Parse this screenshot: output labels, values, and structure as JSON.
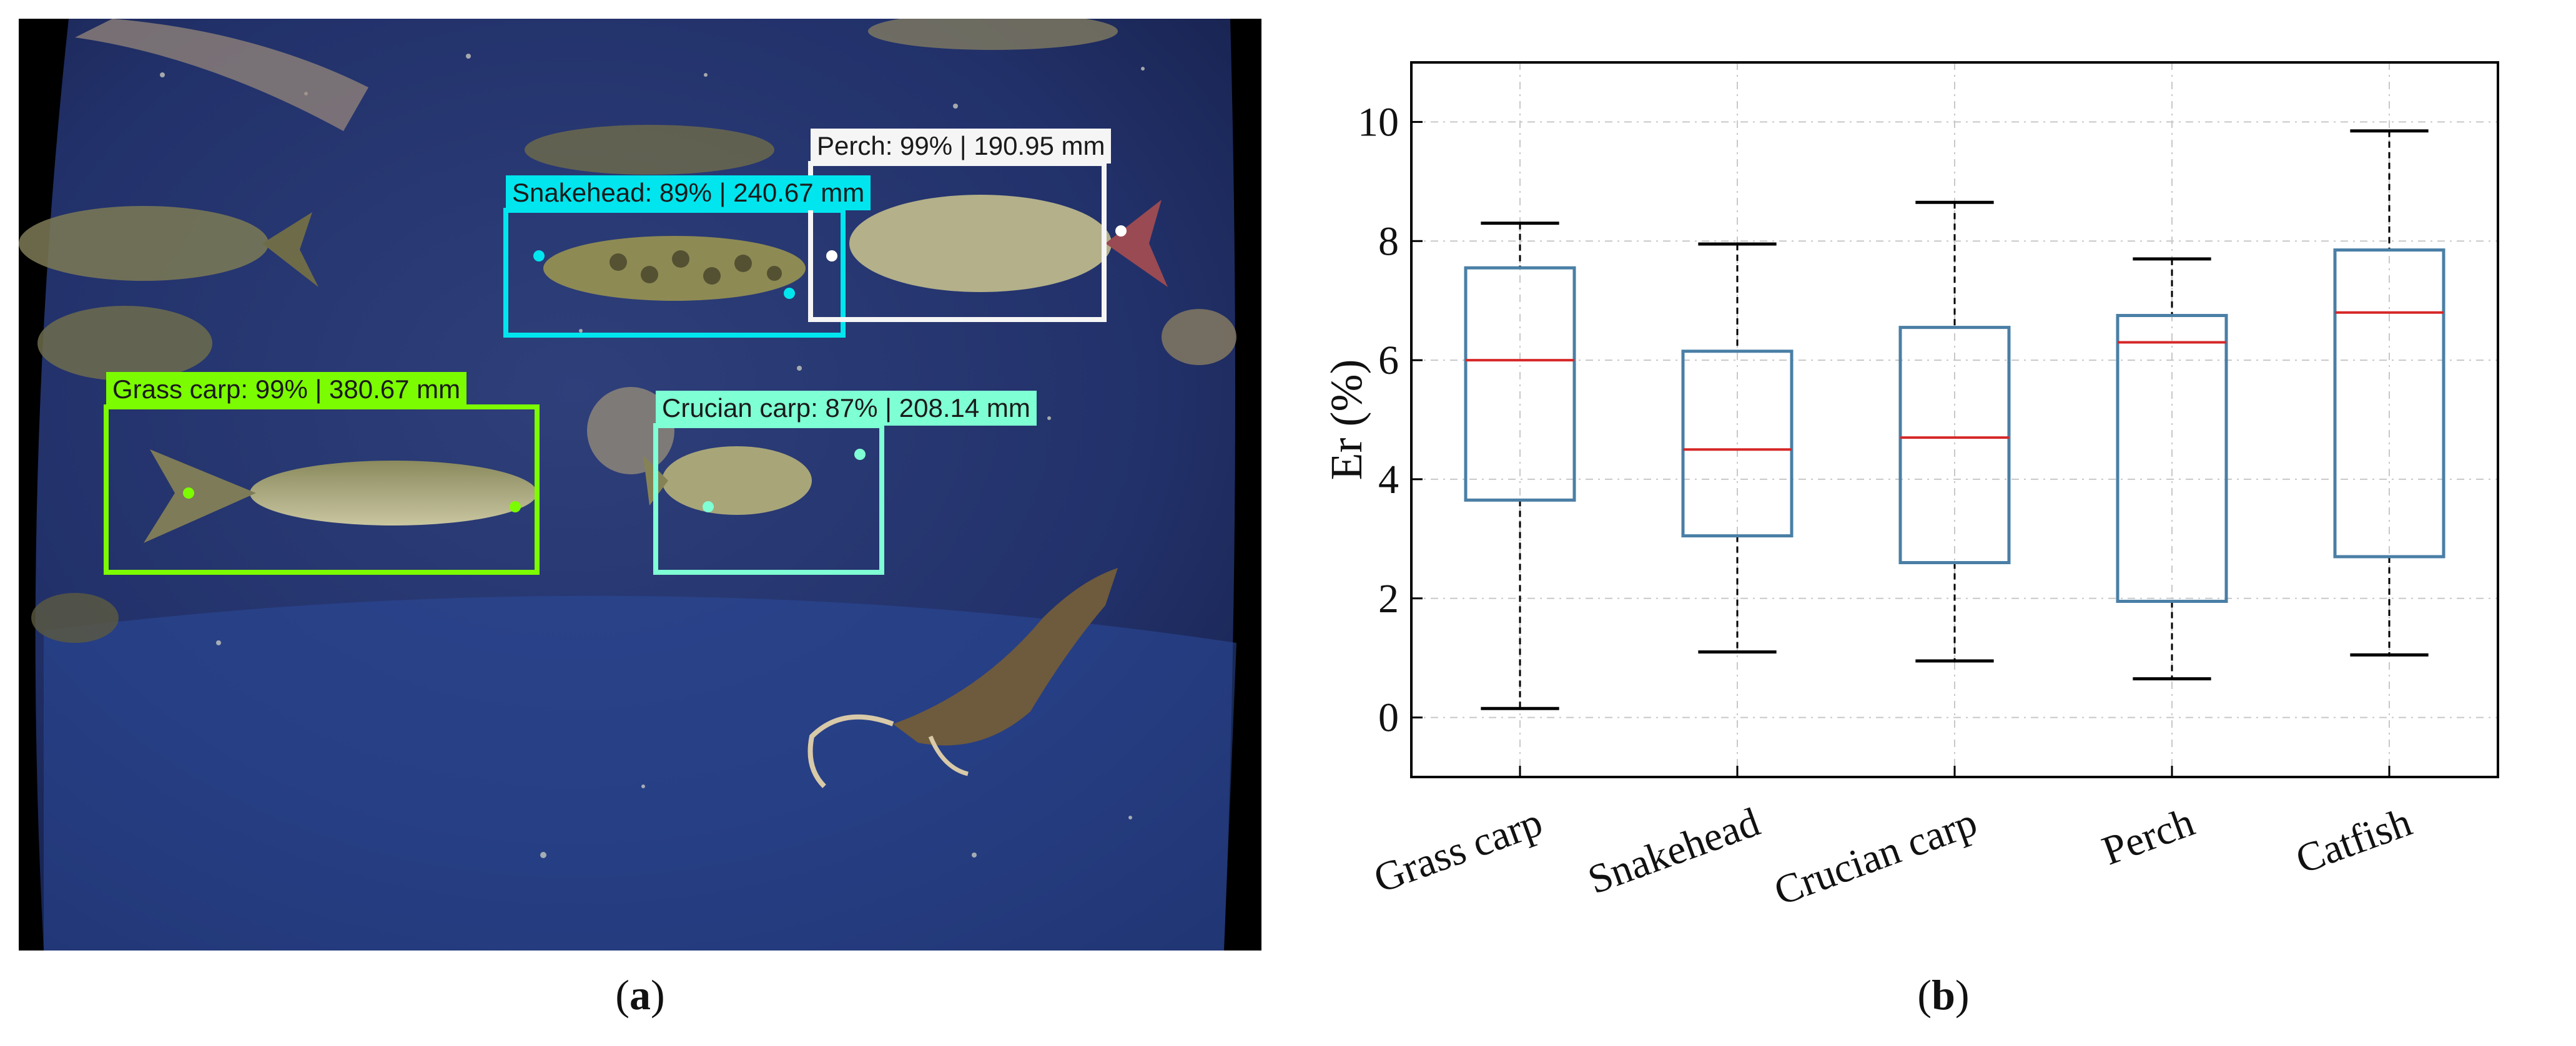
{
  "panel_a": {
    "detections": [
      {
        "label": "Grass carp: 99% | 380.67 mm",
        "color": "#7cfc00"
      },
      {
        "label": "Snakehead: 89% | 240.67 mm",
        "color": "#00e5ee"
      },
      {
        "label": "Perch: 99% | 190.95 mm",
        "color": "#f5f5f5"
      },
      {
        "label": "Crucian carp: 87% | 208.14 mm",
        "color": "#7fffd4"
      }
    ]
  },
  "chart_data": {
    "type": "box",
    "ylabel": "Er (%)",
    "ylim": [
      -1,
      11
    ],
    "yticks": [
      0,
      2,
      4,
      6,
      8,
      10
    ],
    "grid": true,
    "categories": [
      "Grass carp",
      "Snakehead",
      "Crucian carp",
      "Perch",
      "Catfish"
    ],
    "boxes": [
      {
        "name": "Grass carp",
        "min": 0.15,
        "q1": 3.65,
        "median": 6.0,
        "q3": 7.55,
        "max": 8.3
      },
      {
        "name": "Snakehead",
        "min": 1.1,
        "q1": 3.05,
        "median": 4.5,
        "q3": 6.15,
        "max": 7.95
      },
      {
        "name": "Crucian carp",
        "min": 0.95,
        "q1": 2.6,
        "median": 4.7,
        "q3": 6.55,
        "max": 8.65
      },
      {
        "name": "Perch",
        "min": 0.65,
        "q1": 1.95,
        "median": 6.3,
        "q3": 6.75,
        "max": 7.7
      },
      {
        "name": "Catfish",
        "min": 1.05,
        "q1": 2.7,
        "median": 6.8,
        "q3": 7.85,
        "max": 9.85
      }
    ],
    "colors": {
      "box": "#4a7fa6",
      "median": "#d62728",
      "whisker": "#000000",
      "grid": "#c8c8c8"
    }
  },
  "captions": {
    "a": "a",
    "b": "b"
  }
}
